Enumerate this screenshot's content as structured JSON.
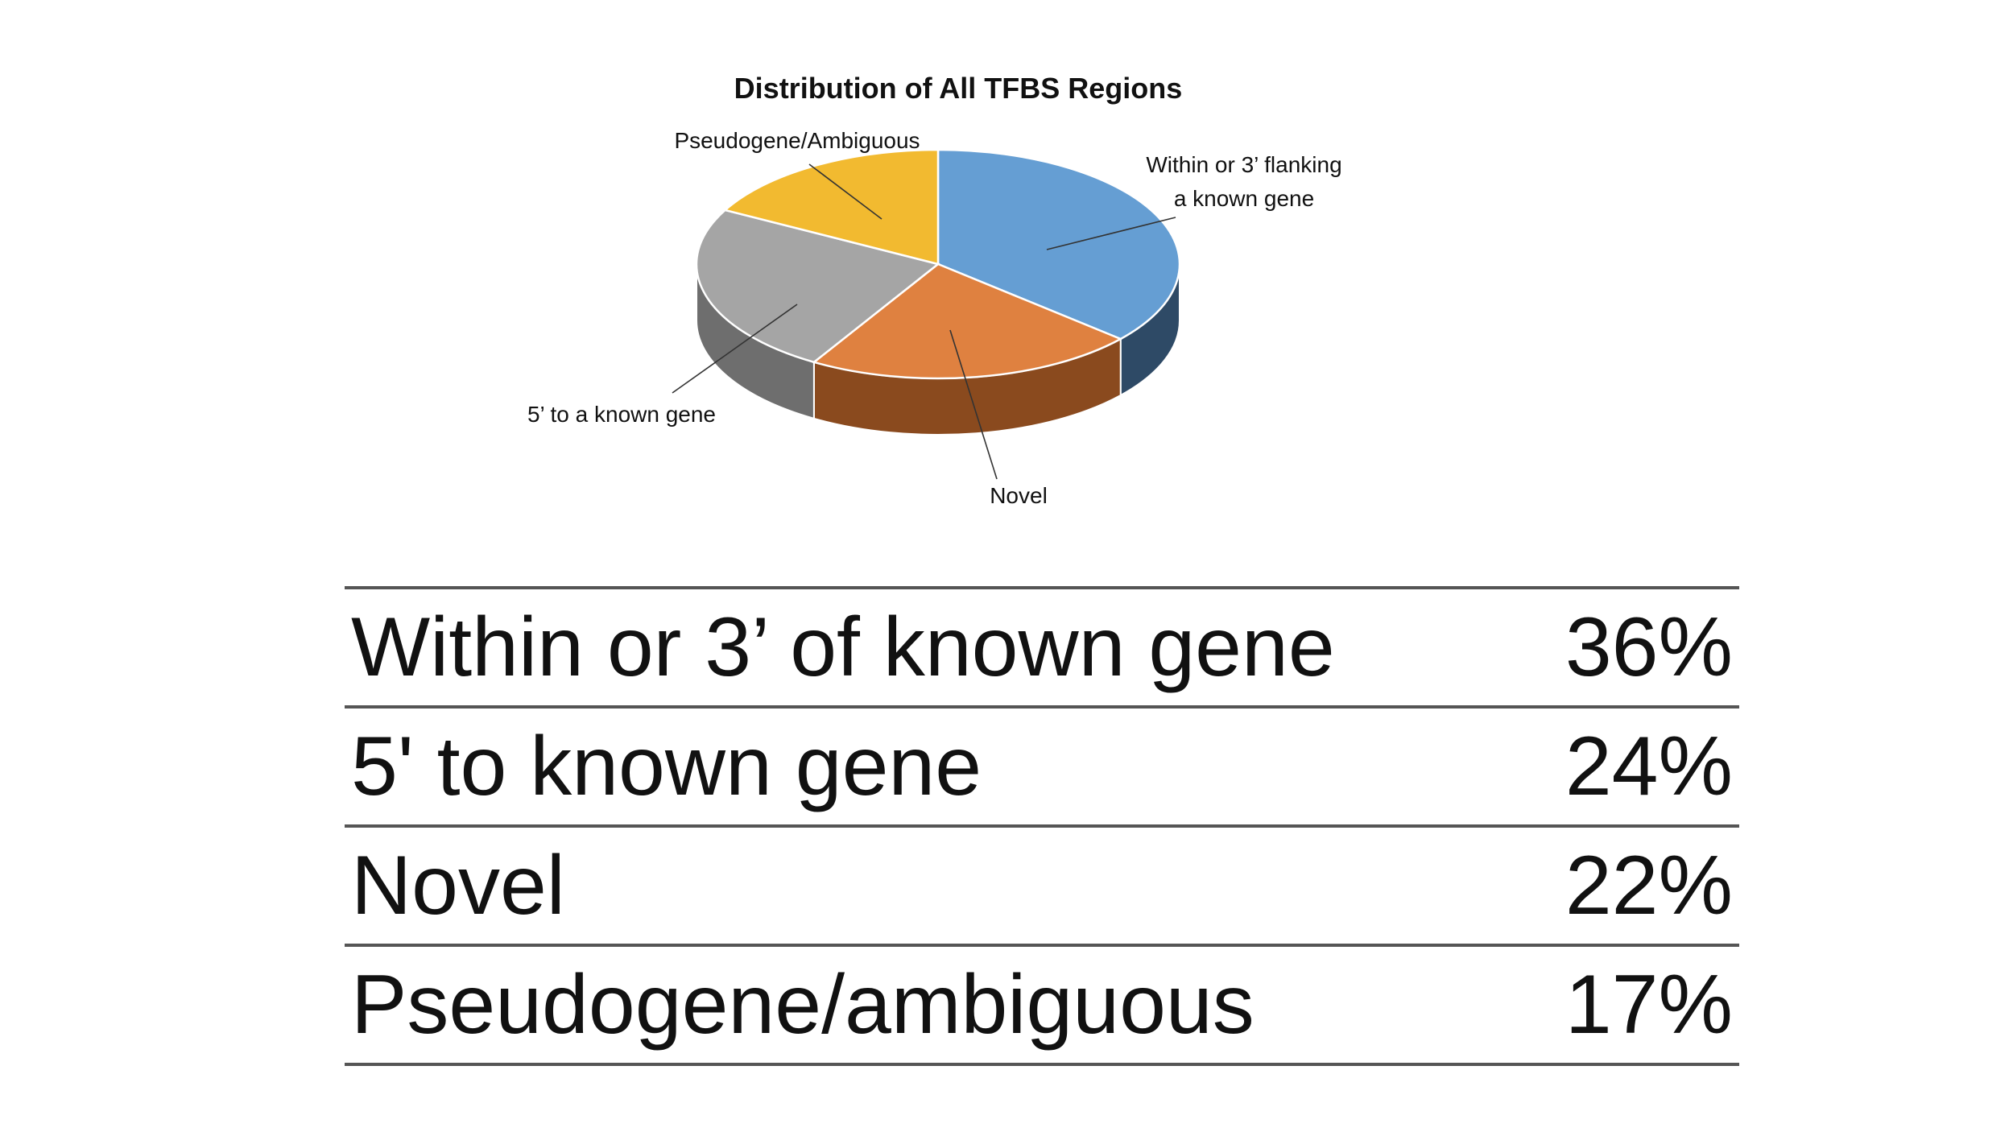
{
  "chart_data": {
    "type": "pie",
    "title": "Distribution of All TFBS Regions",
    "slices": [
      {
        "label": "Within or 3’ flanking a known gene",
        "label_lines": [
          "Within or 3’ flanking",
          "a known gene"
        ],
        "value": 36,
        "color": "#659ED3",
        "side_color": "#2E4A66"
      },
      {
        "label": "Novel",
        "label_lines": [
          "Novel"
        ],
        "value": 22,
        "color": "#DF8140",
        "side_color": "#8A4A1E"
      },
      {
        "label": "5’ to a known gene",
        "label_lines": [
          "5’ to a known gene"
        ],
        "value": 24,
        "color": "#A5A5A5",
        "side_color": "#6E6E6E"
      },
      {
        "label": "Pseudogene/Ambiguous",
        "label_lines": [
          "Pseudogene/Ambiguous"
        ],
        "value": 17,
        "color": "#F2BA30",
        "side_color": "#9C7718"
      }
    ]
  },
  "table": {
    "rows": [
      {
        "category": "Within or 3’ of known gene",
        "percent": "36%"
      },
      {
        "category": "5' to known gene",
        "percent": "24%"
      },
      {
        "category": "Novel",
        "percent": "22%"
      },
      {
        "category": "Pseudogene/ambiguous",
        "percent": "17%"
      }
    ]
  }
}
